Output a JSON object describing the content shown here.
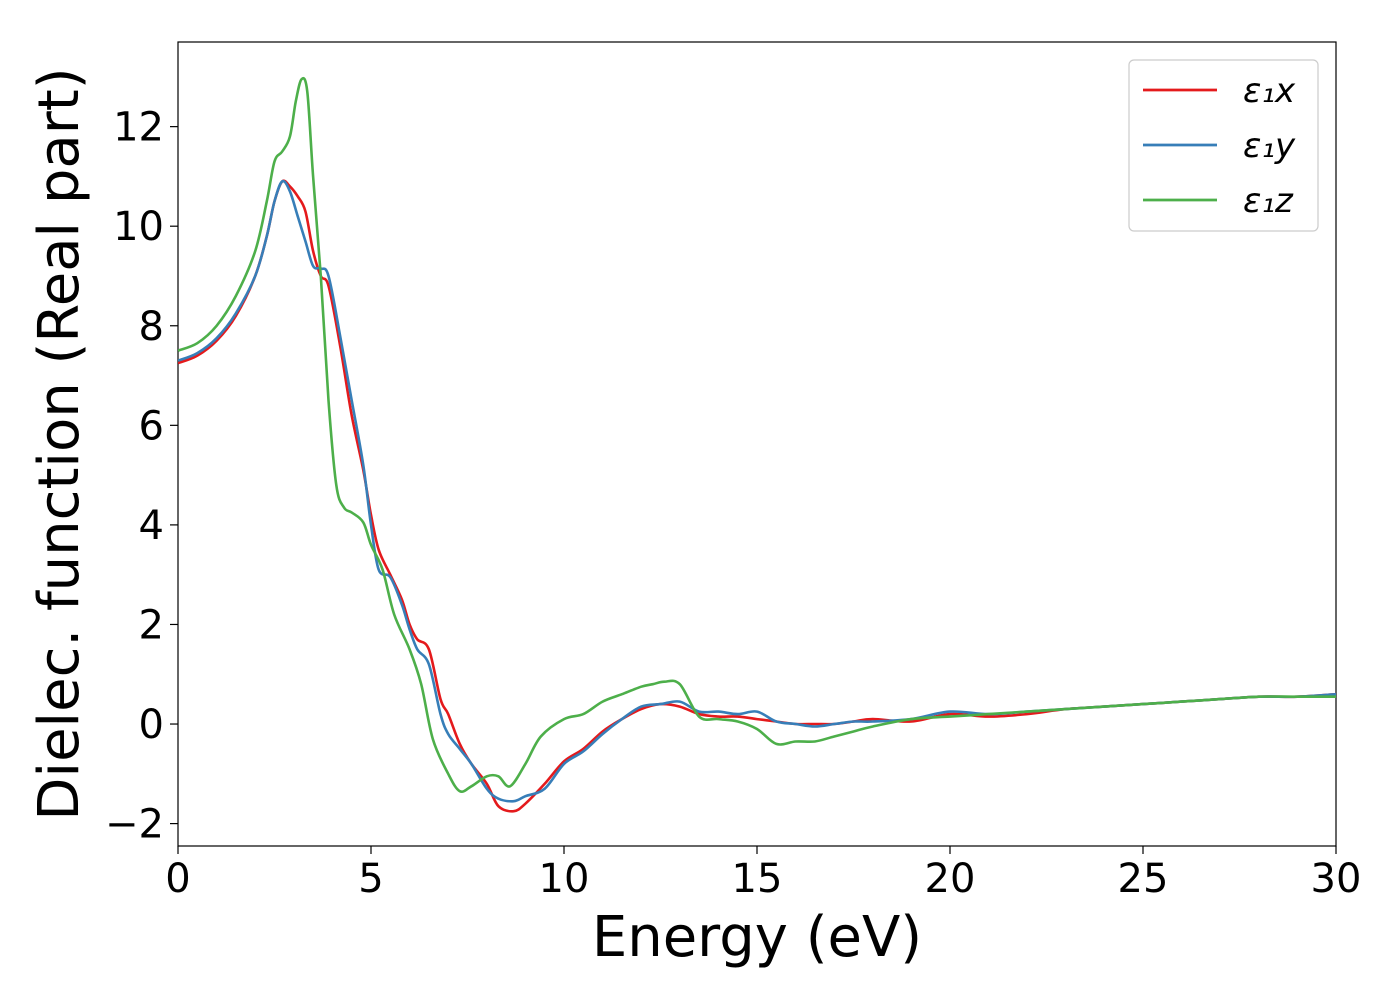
{
  "chart_data": {
    "type": "line",
    "title": "",
    "xlabel": "Energy (eV)",
    "ylabel": "Dielec. function (Real part)",
    "xlim": [
      0,
      30
    ],
    "ylim": [
      -2.45,
      13.7
    ],
    "xticks": [
      0,
      5,
      10,
      15,
      20,
      25,
      30
    ],
    "yticks": [
      -2,
      0,
      2,
      4,
      6,
      8,
      10,
      12
    ],
    "grid": false,
    "legend": "top-right",
    "series": [
      {
        "name": "ε₁x",
        "color": "#e41a1c",
        "x": [
          0,
          0.5,
          1,
          1.5,
          2,
          2.3,
          2.5,
          2.7,
          2.9,
          3.1,
          3.3,
          3.5,
          3.7,
          3.9,
          4.2,
          4.5,
          4.8,
          5.0,
          5.2,
          5.5,
          5.8,
          6.0,
          6.2,
          6.5,
          6.8,
          7.0,
          7.3,
          7.6,
          8.0,
          8.3,
          8.7,
          9.0,
          9.5,
          10.0,
          10.5,
          11.0,
          11.5,
          12.0,
          12.5,
          13.0,
          13.5,
          14.0,
          14.5,
          15.0,
          15.5,
          16.0,
          16.5,
          17.0,
          17.5,
          18.0,
          19.0,
          20.0,
          21.0,
          22.0,
          23.0,
          24.0,
          25.0,
          26.0,
          27.0,
          28.0,
          29.0,
          30.0
        ],
        "y": [
          7.25,
          7.4,
          7.7,
          8.2,
          9.0,
          9.8,
          10.5,
          10.9,
          10.8,
          10.6,
          10.3,
          9.5,
          9.0,
          8.8,
          7.6,
          6.2,
          5.1,
          4.2,
          3.5,
          3.0,
          2.5,
          2.0,
          1.7,
          1.5,
          0.5,
          0.2,
          -0.4,
          -0.8,
          -1.2,
          -1.65,
          -1.75,
          -1.6,
          -1.2,
          -0.75,
          -0.5,
          -0.15,
          0.1,
          0.3,
          0.4,
          0.35,
          0.2,
          0.15,
          0.15,
          0.1,
          0.05,
          0.0,
          0.0,
          0.0,
          0.05,
          0.1,
          0.05,
          0.2,
          0.15,
          0.2,
          0.3,
          0.35,
          0.4,
          0.45,
          0.5,
          0.55,
          0.55,
          0.6
        ]
      },
      {
        "name": "ε₁y",
        "color": "#377eb8",
        "x": [
          0,
          0.5,
          1,
          1.5,
          2,
          2.3,
          2.5,
          2.7,
          2.9,
          3.1,
          3.3,
          3.5,
          3.7,
          3.9,
          4.2,
          4.5,
          4.8,
          5.0,
          5.2,
          5.5,
          5.8,
          6.0,
          6.2,
          6.5,
          6.8,
          7.0,
          7.3,
          7.6,
          8.0,
          8.3,
          8.7,
          9.0,
          9.5,
          10.0,
          10.5,
          11.0,
          11.5,
          12.0,
          12.5,
          13.0,
          13.5,
          14.0,
          14.5,
          15.0,
          15.5,
          16.0,
          16.5,
          17.0,
          17.5,
          18.0,
          19.0,
          20.0,
          21.0,
          22.0,
          23.0,
          24.0,
          25.0,
          26.0,
          27.0,
          28.0,
          29.0,
          30.0
        ],
        "y": [
          7.3,
          7.45,
          7.75,
          8.25,
          9.0,
          9.8,
          10.5,
          10.9,
          10.7,
          10.2,
          9.7,
          9.2,
          9.15,
          9.0,
          7.8,
          6.5,
          5.2,
          4.0,
          3.1,
          2.95,
          2.4,
          1.9,
          1.5,
          1.2,
          0.2,
          -0.2,
          -0.5,
          -0.8,
          -1.3,
          -1.5,
          -1.55,
          -1.45,
          -1.3,
          -0.8,
          -0.55,
          -0.2,
          0.1,
          0.35,
          0.4,
          0.45,
          0.25,
          0.25,
          0.2,
          0.25,
          0.05,
          0.0,
          -0.05,
          0.0,
          0.05,
          0.05,
          0.1,
          0.25,
          0.2,
          0.25,
          0.3,
          0.35,
          0.4,
          0.45,
          0.5,
          0.55,
          0.55,
          0.6
        ]
      },
      {
        "name": "ε₁z",
        "color": "#4daf4a",
        "x": [
          0,
          0.5,
          1,
          1.5,
          2,
          2.3,
          2.5,
          2.7,
          2.9,
          3.05,
          3.2,
          3.35,
          3.5,
          3.7,
          3.9,
          4.1,
          4.3,
          4.5,
          4.8,
          5.0,
          5.3,
          5.6,
          6.0,
          6.3,
          6.6,
          7.0,
          7.3,
          7.6,
          8.0,
          8.3,
          8.6,
          9.0,
          9.4,
          10.0,
          10.5,
          11.0,
          11.5,
          12.0,
          12.3,
          12.6,
          13.0,
          13.5,
          14.0,
          14.5,
          15.0,
          15.5,
          16.0,
          16.5,
          17.0,
          17.5,
          18.0,
          19.0,
          20.0,
          21.0,
          22.0,
          23.0,
          24.0,
          25.0,
          26.0,
          27.0,
          28.0,
          29.0,
          30.0
        ],
        "y": [
          7.5,
          7.65,
          8.0,
          8.6,
          9.5,
          10.5,
          11.3,
          11.5,
          11.8,
          12.5,
          12.95,
          12.7,
          11.0,
          9.0,
          6.5,
          4.8,
          4.35,
          4.25,
          4.05,
          3.6,
          3.1,
          2.2,
          1.5,
          0.8,
          -0.3,
          -1.0,
          -1.35,
          -1.25,
          -1.05,
          -1.05,
          -1.25,
          -0.8,
          -0.25,
          0.1,
          0.2,
          0.45,
          0.6,
          0.75,
          0.8,
          0.85,
          0.8,
          0.15,
          0.1,
          0.05,
          -0.1,
          -0.4,
          -0.35,
          -0.35,
          -0.25,
          -0.15,
          -0.05,
          0.1,
          0.15,
          0.2,
          0.25,
          0.3,
          0.35,
          0.4,
          0.45,
          0.5,
          0.55,
          0.55,
          0.55
        ]
      }
    ]
  }
}
